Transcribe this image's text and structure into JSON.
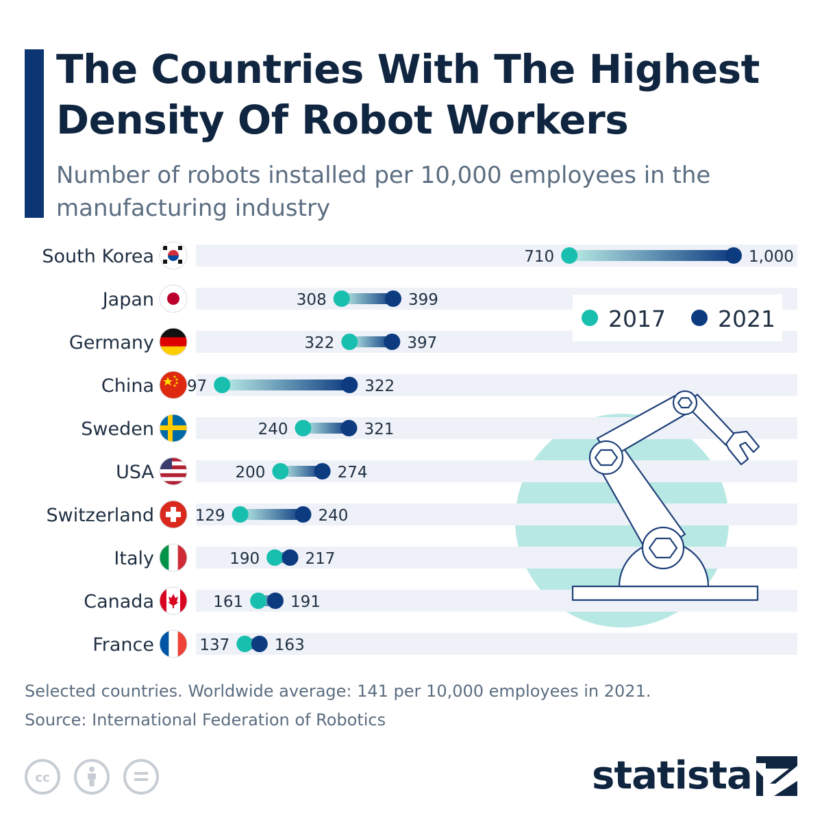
{
  "title": "The Countries With The Highest Density Of Robot Workers",
  "subtitle": "Number of robots installed per 10,000 employees in the manufacturing industry",
  "footnote": {
    "line1": "Selected countries. Worldwide average: 141 per 10,000 employees in 2021.",
    "line2": "Source: International Federation of Robotics"
  },
  "brand": "statista",
  "colors": {
    "accent": "#0b3573",
    "color_2017": "#18bfae",
    "color_2021": "#0d3b80",
    "track": "#eef1f7",
    "circle_bg": "#b8e8e4",
    "line_art": "#1e3f78"
  },
  "icons": [
    "flag-icon",
    "robot-arm-icon",
    "creative-commons-icon",
    "attribution-icon",
    "no-derivatives-icon",
    "statista-logo-icon"
  ],
  "chart_data": {
    "type": "dumbbell",
    "legend_position": "top-right",
    "series": [
      {
        "name": "2017",
        "values": [
          710,
          308,
          322,
          97,
          240,
          200,
          129,
          190,
          161,
          137
        ]
      },
      {
        "name": "2021",
        "values": [
          1000,
          399,
          397,
          322,
          321,
          274,
          240,
          217,
          191,
          163
        ]
      }
    ],
    "categories": [
      "South Korea",
      "Japan",
      "Germany",
      "China",
      "Sweden",
      "USA",
      "Switzerland",
      "Italy",
      "Canada",
      "France"
    ],
    "value_labels_2017": [
      "710",
      "308",
      "322",
      "97",
      "240",
      "200",
      "129",
      "190",
      "161",
      "137"
    ],
    "value_labels_2021": [
      "1,000",
      "399",
      "397",
      "322",
      "321",
      "274",
      "240",
      "217",
      "191",
      "163"
    ],
    "xlim": [
      0,
      1000
    ],
    "grid": false
  }
}
